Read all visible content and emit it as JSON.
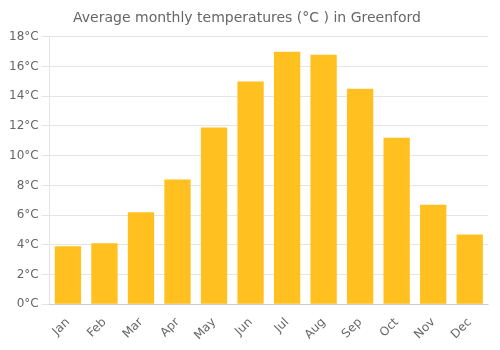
{
  "chart_data": {
    "type": "bar",
    "title": "Average monthly temperatures (°C ) in Greenford",
    "categories": [
      "Jan",
      "Feb",
      "Mar",
      "Apr",
      "May",
      "Jun",
      "Jul",
      "Aug",
      "Sep",
      "Oct",
      "Nov",
      "Dec"
    ],
    "values": [
      3.9,
      4.1,
      6.2,
      8.4,
      11.9,
      15.0,
      17.0,
      16.8,
      14.5,
      11.2,
      6.7,
      4.7
    ],
    "color": "#FFC020",
    "ylim": [
      0,
      18
    ],
    "yticks": [
      {
        "value": 0,
        "label": "0°C"
      },
      {
        "value": 2,
        "label": "2°C"
      },
      {
        "value": 4,
        "label": "4°C"
      },
      {
        "value": 6,
        "label": "6°C"
      },
      {
        "value": 8,
        "label": "8°C"
      },
      {
        "value": 10,
        "label": "10°C"
      },
      {
        "value": 12,
        "label": "12°C"
      },
      {
        "value": 14,
        "label": "14°C"
      },
      {
        "value": 16,
        "label": "16°C"
      },
      {
        "value": 18,
        "label": "18°C"
      }
    ],
    "grid": true
  }
}
